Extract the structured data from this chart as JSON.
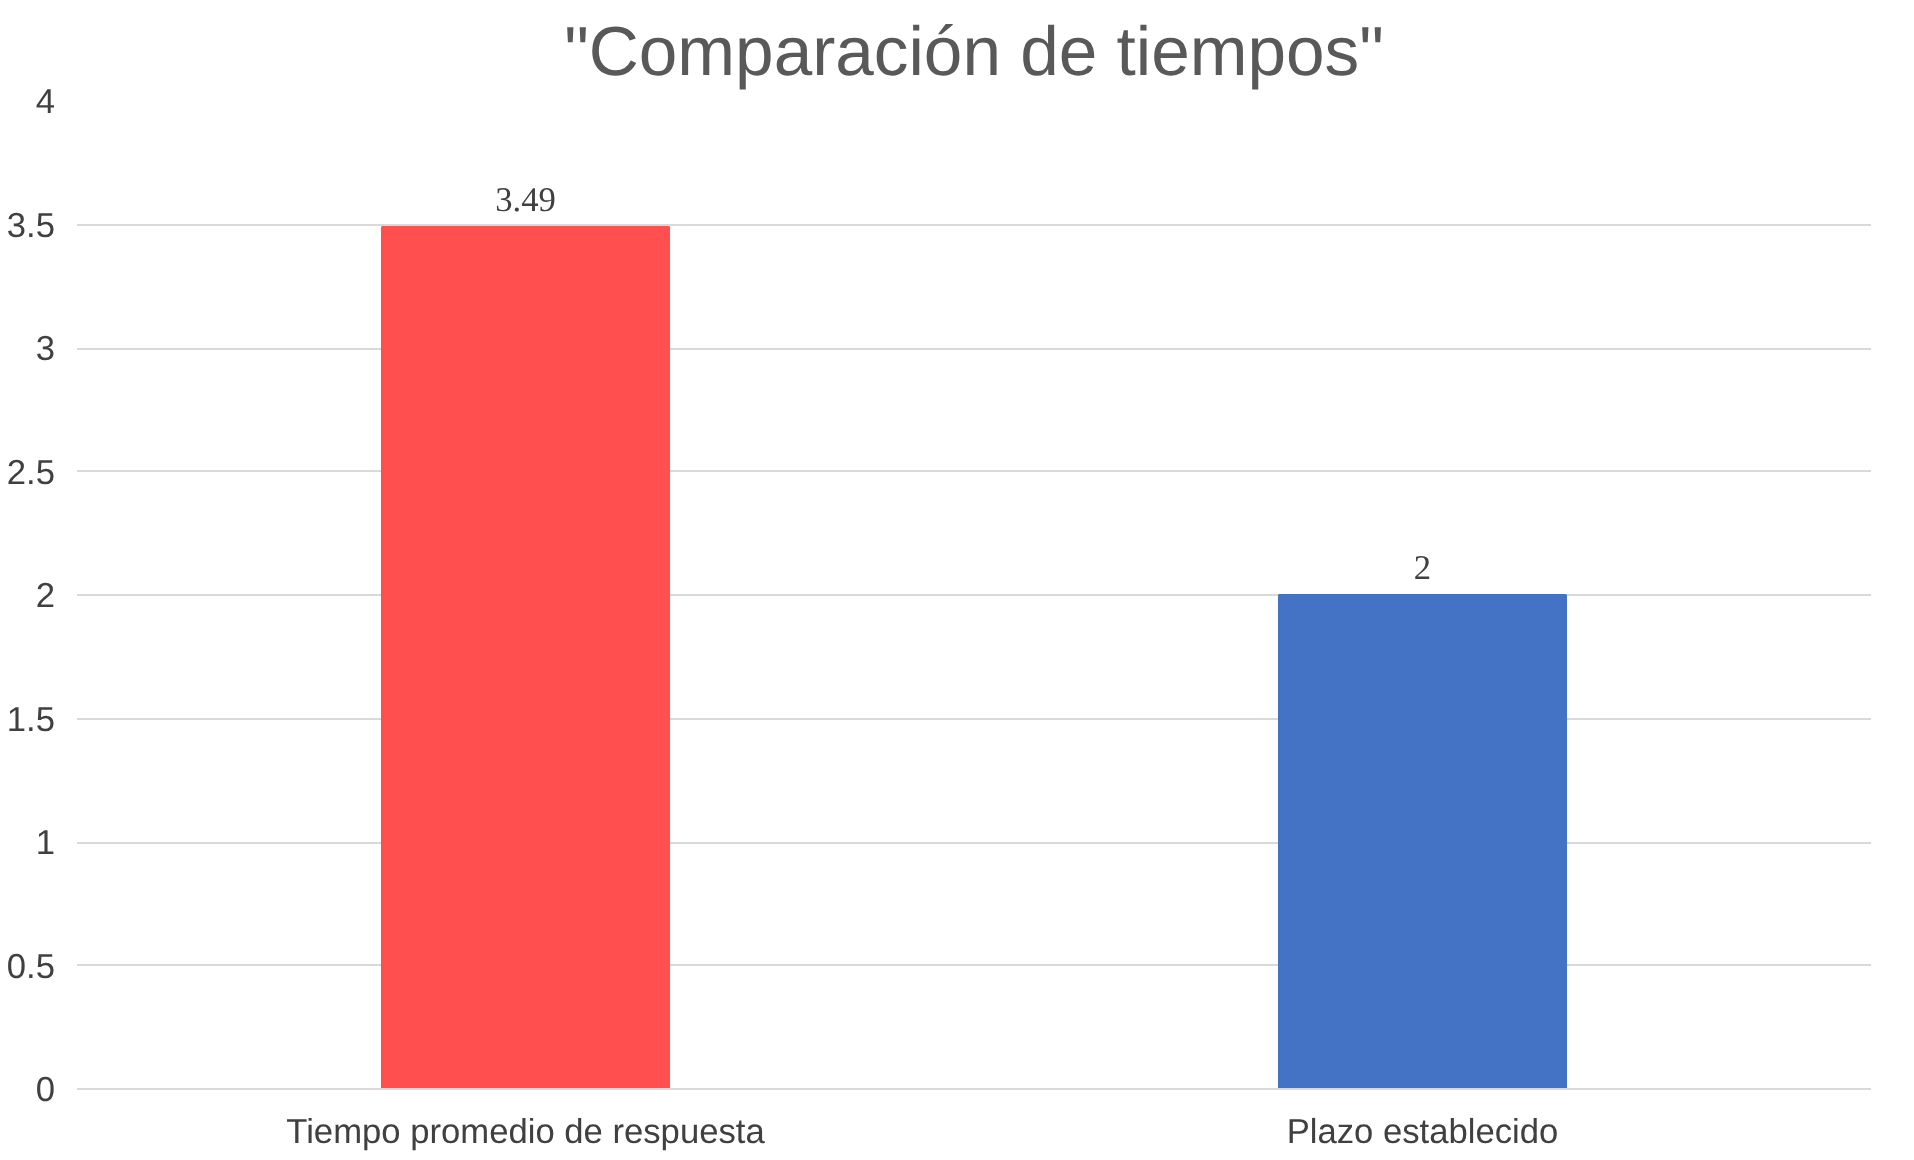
{
  "chart_data": {
    "type": "bar",
    "title": "\"Comparación de tiempos\"",
    "categories": [
      "Tiempo promedio de respuesta",
      "Plazo establecido"
    ],
    "values": [
      3.49,
      2
    ],
    "colors": [
      "#ff4f4f",
      "#4472c4"
    ],
    "ylim": [
      0,
      4
    ],
    "yticks": [
      0,
      0.5,
      1,
      1.5,
      2,
      2.5,
      3,
      3.5,
      4
    ],
    "grid": "y",
    "data_labels": true
  }
}
